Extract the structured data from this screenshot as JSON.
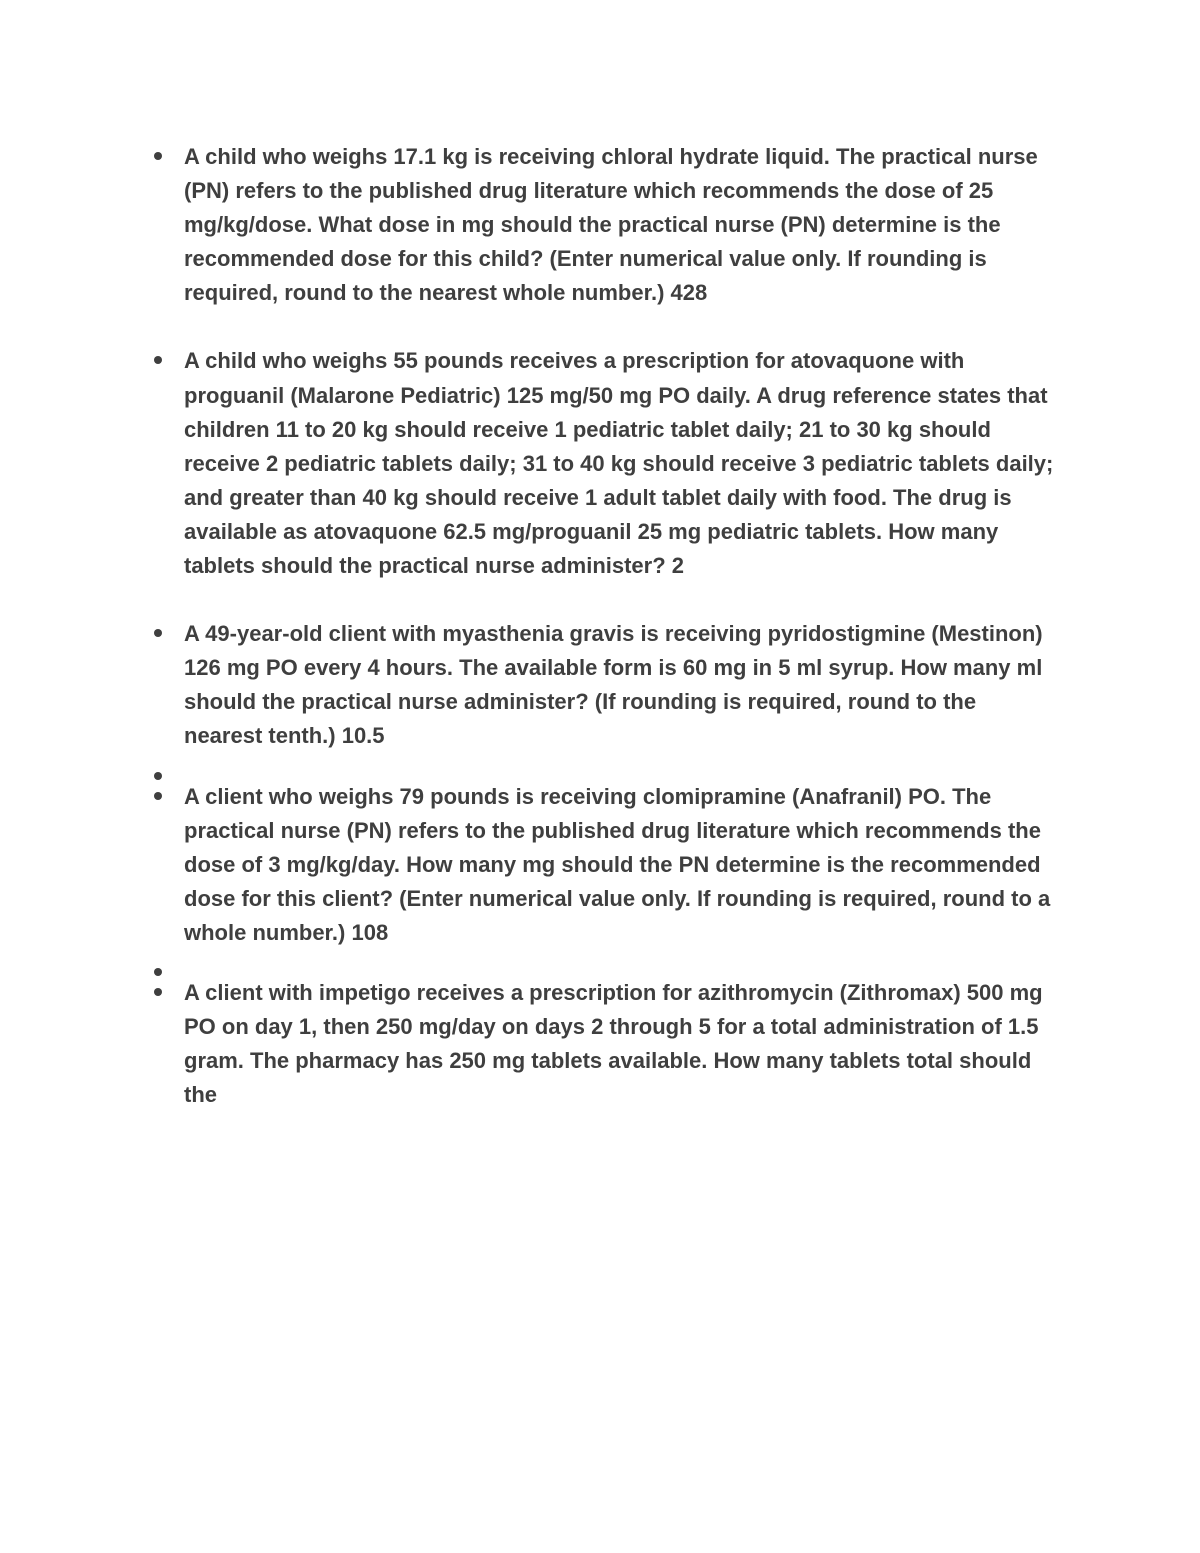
{
  "text_color": "#3f3f3f",
  "background_color": "#ffffff",
  "font_family": "Arial",
  "font_size_pt": 16,
  "font_weight": "bold",
  "bullets": [
    {
      "question": "A child who weighs 17.1 kg is receiving chloral hydrate liquid. The practical nurse (PN) refers to the published drug literature which recommends the dose of 25 mg/kg/dose. What dose in mg should the practical nurse (PN) determine is the recommended dose for this child? (Enter numerical value only. If rounding is required, round to the nearest whole number.)",
      "answer": "428"
    },
    {
      "question": "A child who weighs 55 pounds receives a prescription for atovaquone with proguanil (Malarone Pediatric) 125 mg/50 mg PO daily. A drug reference states that children 11 to 20 kg should receive 1 pediatric tablet daily; 21 to 30 kg should receive 2 pediatric tablets daily; 31 to 40 kg should receive 3 pediatric tablets daily; and greater than 40 kg should receive 1 adult tablet daily with food. The drug is available as atovaquone 62.5 mg/proguanil 25 mg pediatric tablets. How many tablets should the practical nurse administer?",
      "answer": "2"
    },
    {
      "question": "A 49-year-old client with myasthenia gravis is receiving pyridostigmine (Mestinon) 126 mg PO every 4 hours. The available form is 60 mg in 5 ml syrup. How many ml should the practical nurse administer? (If rounding is required, round to the nearest tenth.)",
      "answer": "10.5"
    },
    {
      "empty": true
    },
    {
      "question": "A client who weighs 79 pounds is receiving clomipramine (Anafranil) PO. The practical nurse (PN) refers to the published drug literature which recommends the dose of 3 mg/kg/day. How many mg should the PN determine is the recommended dose for this client? (Enter numerical value only. If rounding is required, round to a whole number.)",
      "answer": "108"
    },
    {
      "empty": true
    },
    {
      "question": "A client with impetigo receives a prescription for azithromycin (Zithromax) 500 mg PO on day 1, then 250 mg/day on days 2 through 5 for a total administration of 1.5 gram. The pharmacy has 250 mg tablets available. How many tablets total should the",
      "answer": ""
    }
  ]
}
